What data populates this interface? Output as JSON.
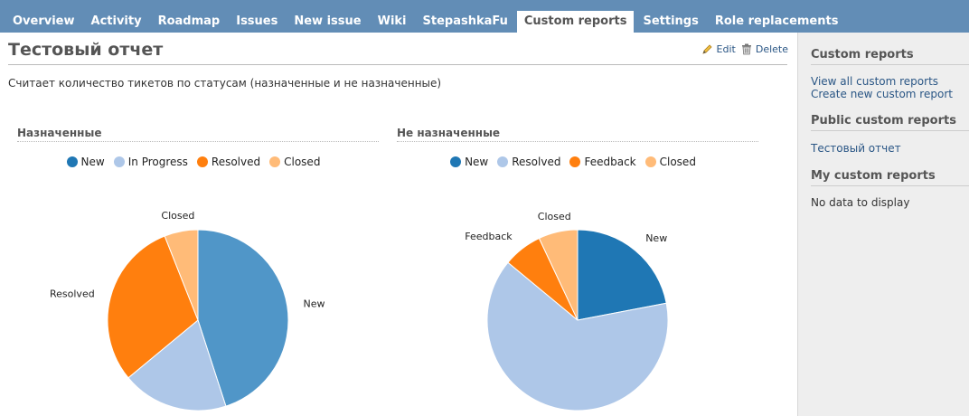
{
  "tabs": [
    {
      "label": "Overview"
    },
    {
      "label": "Activity"
    },
    {
      "label": "Roadmap"
    },
    {
      "label": "Issues"
    },
    {
      "label": "New issue"
    },
    {
      "label": "Wiki"
    },
    {
      "label": "StepashkaFu"
    },
    {
      "label": "Custom reports",
      "active": true
    },
    {
      "label": "Settings"
    },
    {
      "label": "Role replacements"
    }
  ],
  "report": {
    "title": "Тестовый отчет",
    "description": "Считает количество тикетов по статусам (назначенные и не назначенные)",
    "edit_label": "Edit",
    "delete_label": "Delete"
  },
  "colors": {
    "New": "#1f77b4",
    "In Progress": "#aec7e8",
    "Resolved": "#aec7e8",
    "Feedback": "#ff7f0e",
    "Closed": "#ffbb78"
  },
  "chart_data": [
    {
      "type": "pie",
      "title": "Назначенные",
      "categories": [
        "New",
        "In Progress",
        "Resolved",
        "Closed"
      ],
      "values": [
        45,
        19,
        30,
        6
      ],
      "colors": [
        "#5096c8",
        "#aec7e8",
        "#ff7f0e",
        "#ffbb78"
      ],
      "legend": "top"
    },
    {
      "type": "pie",
      "title": "Не назначенные",
      "categories": [
        "New",
        "Resolved",
        "Feedback",
        "Closed"
      ],
      "values": [
        22,
        64,
        7,
        7
      ],
      "colors": [
        "#1f77b4",
        "#aec7e8",
        "#ff7f0e",
        "#ffbb78"
      ],
      "legend": "top"
    }
  ],
  "sidebar": {
    "heading_custom": "Custom reports",
    "view_all": "View all custom reports",
    "create_new": "Create new custom report",
    "heading_public": "Public custom reports",
    "public_items": [
      "Тестовый отчет"
    ],
    "heading_my": "My custom reports",
    "my_empty": "No data to display"
  }
}
